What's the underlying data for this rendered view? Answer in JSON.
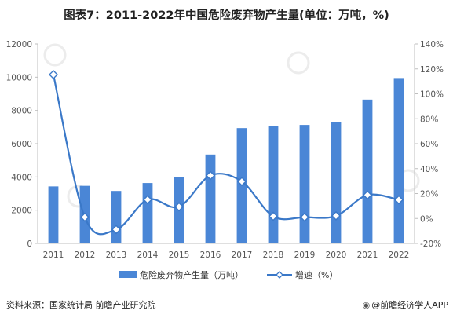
{
  "title": "图表7：2011-2022年中国危险废弃物产生量(单位：万吨，%)",
  "source": "资料来源：国家统计局 前瞻产业研究院",
  "credit": "@前瞻经济学人APP",
  "chart_data": {
    "type": "bar+line",
    "categories": [
      "2011",
      "2012",
      "2013",
      "2014",
      "2015",
      "2016",
      "2017",
      "2018",
      "2019",
      "2020",
      "2021",
      "2022"
    ],
    "series": [
      {
        "name": "危险废弃物产生量（万吨）",
        "type": "bar",
        "axis": "left",
        "values": [
          3431,
          3465,
          3157,
          3634,
          3976,
          5347,
          6937,
          7055,
          7129,
          7282,
          8653,
          9950
        ]
      },
      {
        "name": "增速（%）",
        "type": "line",
        "axis": "right",
        "values": [
          115.4,
          1.0,
          -8.9,
          15.1,
          9.4,
          34.5,
          29.7,
          1.7,
          1.0,
          2.1,
          18.8,
          15.0
        ]
      }
    ],
    "y_left": {
      "min": 0,
      "max": 12000,
      "ticks": [
        "0",
        "2000",
        "4000",
        "6000",
        "8000",
        "10000",
        "12000"
      ]
    },
    "y_right": {
      "min": -20,
      "max": 140,
      "ticks": [
        "-20%",
        "0%",
        "20%",
        "40%",
        "60%",
        "80%",
        "100%",
        "120%",
        "140%"
      ]
    },
    "grid": false,
    "legend_position": "bottom",
    "colors": {
      "bar": "#4a86d6",
      "line": "#3a78c8",
      "marker_fill": "#ffffff"
    }
  }
}
